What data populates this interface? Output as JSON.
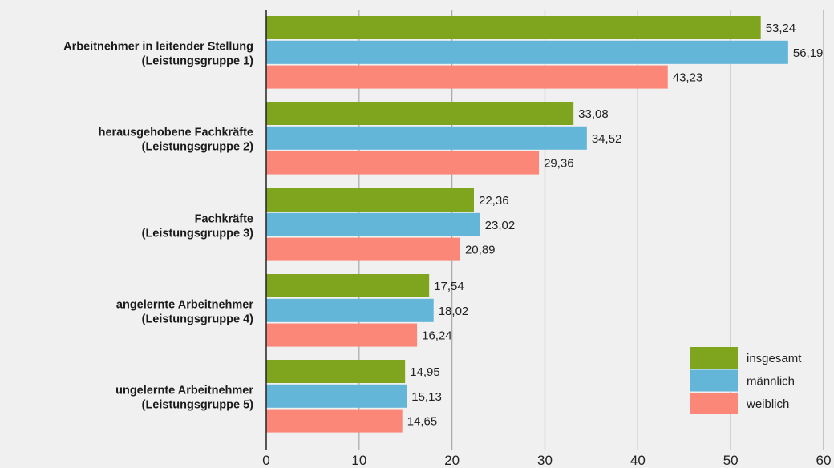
{
  "chart_data": {
    "type": "bar",
    "orientation": "horizontal",
    "categories": [
      [
        "Arbeitnehmer in leitender Stellung",
        "(Leistungsgruppe 1)"
      ],
      [
        "herausgehobene Fachkräfte",
        "(Leistungsgruppe 2)"
      ],
      [
        "Fachkräfte",
        "(Leistungsgruppe 3)"
      ],
      [
        "angelernte Arbeitnehmer",
        "(Leistungsgruppe 4)"
      ],
      [
        "ungelernte Arbeitnehmer",
        "(Leistungsgruppe 5)"
      ]
    ],
    "series": [
      {
        "name": "insgesamt",
        "color": "#7fa51f",
        "values": [
          53.24,
          33.08,
          22.36,
          17.54,
          14.95
        ],
        "labels": [
          "53,24",
          "33,08",
          "22,36",
          "17,54",
          "14,95"
        ]
      },
      {
        "name": "männlich",
        "color": "#64b6d9",
        "values": [
          56.19,
          34.52,
          23.02,
          18.02,
          15.13
        ],
        "labels": [
          "56,19",
          "34,52",
          "23,02",
          "18,02",
          "15,13"
        ]
      },
      {
        "name": "weiblich",
        "color": "#fb8778",
        "values": [
          43.23,
          29.36,
          20.89,
          16.24,
          14.65
        ],
        "labels": [
          "43,23",
          "29,36",
          "20,89",
          "16,24",
          "14,65"
        ]
      }
    ],
    "xlim": [
      0,
      60
    ],
    "xticks": [
      0,
      10,
      20,
      30,
      40,
      50,
      60
    ],
    "xtick_labels": [
      "0",
      "10",
      "20",
      "30",
      "40",
      "50",
      "60"
    ],
    "grid": "vertical",
    "legend_position": "bottom-right",
    "title": "",
    "xlabel": "",
    "ylabel": ""
  }
}
